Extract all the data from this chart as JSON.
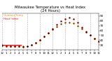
{
  "title": "Milwaukee Temperature vs Heat Index\n(24 Hours)",
  "title_fontsize": 3.8,
  "background_color": "#ffffff",
  "xlim": [
    0,
    23
  ],
  "ylim": [
    20,
    95
  ],
  "yticks": [
    30,
    40,
    50,
    60,
    70,
    80,
    90
  ],
  "ytick_fontsize": 3.0,
  "xtick_fontsize": 2.8,
  "hours": [
    0,
    1,
    2,
    3,
    4,
    5,
    6,
    7,
    8,
    9,
    10,
    11,
    12,
    13,
    14,
    15,
    16,
    17,
    18,
    19,
    20,
    21,
    22,
    23
  ],
  "temp": [
    30,
    29,
    28,
    28,
    27,
    27,
    27,
    30,
    35,
    40,
    48,
    55,
    62,
    68,
    73,
    76,
    77,
    75,
    70,
    63,
    56,
    50,
    44,
    38
  ],
  "heat_index": [
    29,
    28,
    28,
    27,
    27,
    26,
    27,
    30,
    35,
    40,
    48,
    55,
    64,
    72,
    79,
    84,
    86,
    83,
    76,
    67,
    58,
    50,
    44,
    38
  ],
  "temp_color": "#ff8800",
  "heat_color": "#ff0000",
  "black_color": "#000000",
  "marker_size": 2.0,
  "grid_color": "#aaaaaa",
  "grid_style": "--",
  "grid_lw": 0.4,
  "legend_temp": "Outdoor Temp",
  "legend_heat": "Heat Index",
  "xtick_labels": [
    "12",
    "1",
    "2",
    "3",
    "4",
    "5",
    "6",
    "7",
    "8",
    "9",
    "10",
    "11",
    "12",
    "1",
    "2",
    "3",
    "4",
    "5",
    "6",
    "7",
    "8",
    "9",
    "10",
    "11"
  ],
  "vgrid_positions": [
    0,
    3,
    6,
    9,
    12,
    15,
    18,
    21
  ],
  "red_line_y": 30,
  "red_line_x_start": 0,
  "red_line_x_end": 4.5,
  "ylabel_right": true
}
